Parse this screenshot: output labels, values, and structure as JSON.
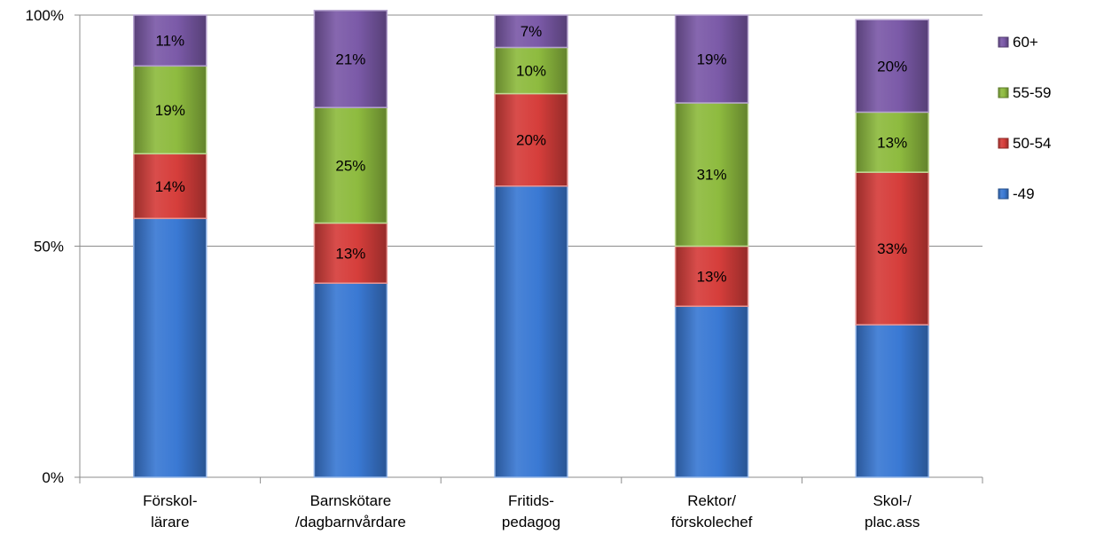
{
  "chart_data": {
    "type": "bar",
    "stacked": true,
    "percent_stacked": true,
    "categories": [
      [
        "Förskol-",
        "lärare"
      ],
      [
        "Barnskötare",
        "/dagbarnvårdare"
      ],
      [
        "Fritids-",
        "pedagog"
      ],
      [
        "Rektor/",
        "förskolechef"
      ],
      [
        "Skol-/",
        "plac.ass"
      ]
    ],
    "series": [
      {
        "name": "-49",
        "color": "#3a79d4",
        "values": [
          56,
          42,
          63,
          37,
          33
        ],
        "labels": [
          "",
          "",
          "",
          "",
          ""
        ]
      },
      {
        "name": "50-54",
        "color": "#d63e3b",
        "values": [
          14,
          13,
          20,
          13,
          33
        ],
        "labels": [
          "14%",
          "13%",
          "20%",
          "13%",
          "33%"
        ]
      },
      {
        "name": "55-59",
        "color": "#8ebb3f",
        "values": [
          19,
          25,
          10,
          31,
          13
        ],
        "labels": [
          "19%",
          "25%",
          "10%",
          "31%",
          "13%"
        ]
      },
      {
        "name": "60+",
        "color": "#7b5aa8",
        "values": [
          11,
          21,
          7,
          19,
          20
        ],
        "labels": [
          "11%",
          "21%",
          "7%",
          "19%",
          "20%"
        ]
      }
    ],
    "y_ticks": [
      {
        "value": 0,
        "label": "0%"
      },
      {
        "value": 50,
        "label": "50%"
      },
      {
        "value": 100,
        "label": "100%"
      }
    ],
    "ylim": [
      0,
      100
    ],
    "grid": true,
    "legend": "right",
    "legend_order": [
      "60+",
      "55-59",
      "50-54",
      "-49"
    ],
    "title": "",
    "xlabel": "",
    "ylabel": ""
  }
}
